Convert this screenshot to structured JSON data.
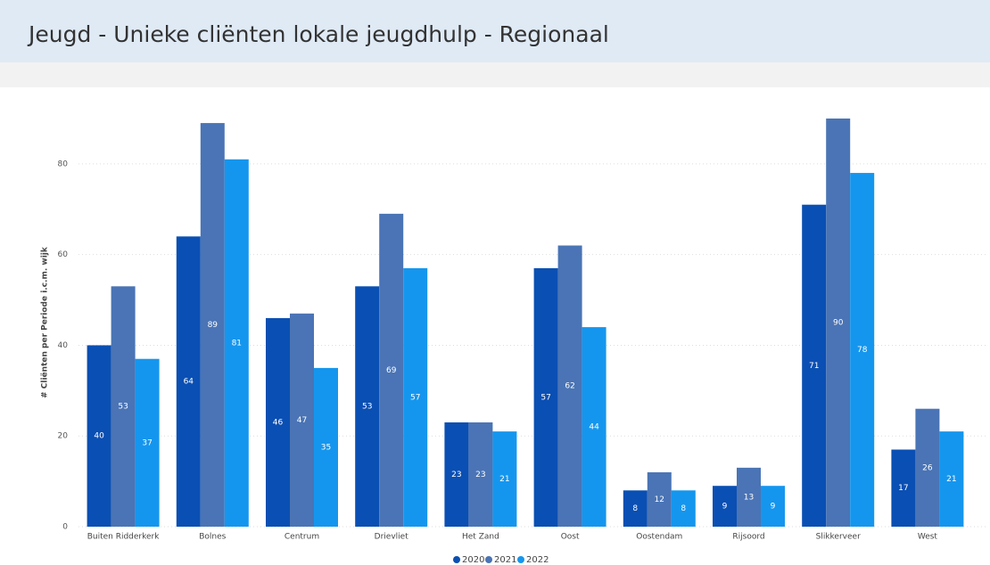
{
  "chart_data": {
    "type": "bar",
    "title": "Jeugd - Unieke cliënten lokale jeugdhulp - Regionaal",
    "y_label": "# Cliënten per Periode i.c.m. wijk",
    "categories": [
      "Buiten Ridderkerk",
      "Bolnes",
      "Centrum",
      "Drievliet",
      "Het Zand",
      "Oost",
      "Oostendam",
      "Rijsoord",
      "Slikkerveer",
      "West"
    ],
    "series": [
      {
        "name": "2020",
        "color": "#0a4fb3",
        "values": [
          40,
          64,
          46,
          53,
          23,
          57,
          8,
          9,
          71,
          17
        ]
      },
      {
        "name": "2021",
        "color": "#4a74b5",
        "values": [
          53,
          89,
          47,
          69,
          23,
          62,
          12,
          13,
          90,
          26
        ]
      },
      {
        "name": "2022",
        "color": "#1596ee",
        "values": [
          37,
          81,
          35,
          57,
          21,
          44,
          8,
          9,
          78,
          21
        ]
      }
    ],
    "ylim": [
      0,
      90
    ],
    "yticks": [
      0,
      20,
      40,
      60,
      80
    ],
    "grid": true,
    "legend": "bottom"
  }
}
